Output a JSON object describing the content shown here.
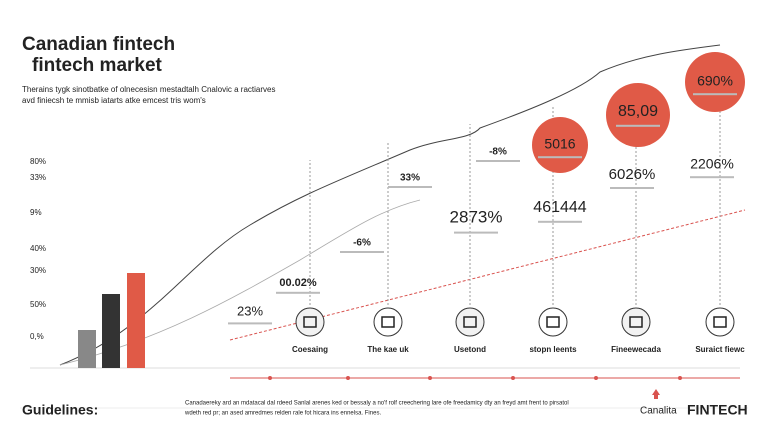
{
  "header": {
    "title": [
      "Canadian fintech",
      "fintech market"
    ],
    "subtitle": [
      "Therains tygk sinotbatke of olnecesisn mestadtalh Cnalovic a ractiarves",
      "avd finiecsh te mmisb iatarts atke emcest tris wom's"
    ]
  },
  "axis_labels": [
    "80%",
    "33%",
    "9%",
    "40%",
    "30%",
    "50%",
    "0,%"
  ],
  "callouts": [
    "23%",
    "00.02%",
    "-6%",
    "33%",
    "-8%",
    "2873%",
    "461444",
    "5016",
    "85,09",
    "6026%",
    "690%",
    "2206%"
  ],
  "steps": [
    "Coesaing",
    "The kae uk",
    "Usetond",
    "stopn leents",
    "Fineewecada",
    "Suraict fiewc"
  ],
  "footer": {
    "left": "Guidelines:",
    "text": [
      "Canadaereky ard an mdatacal dal rdeed Sanlal arenes ked or bessaly a no'f rolf creechering lare ofe freedamicy dty an freyd amt frent to pirsatol",
      "wdeth red pr; an ased amredmes relden rale fot hicara ins ennelsa. Fines."
    ],
    "brand": "Canalita",
    "product": "FINTECH"
  }
}
